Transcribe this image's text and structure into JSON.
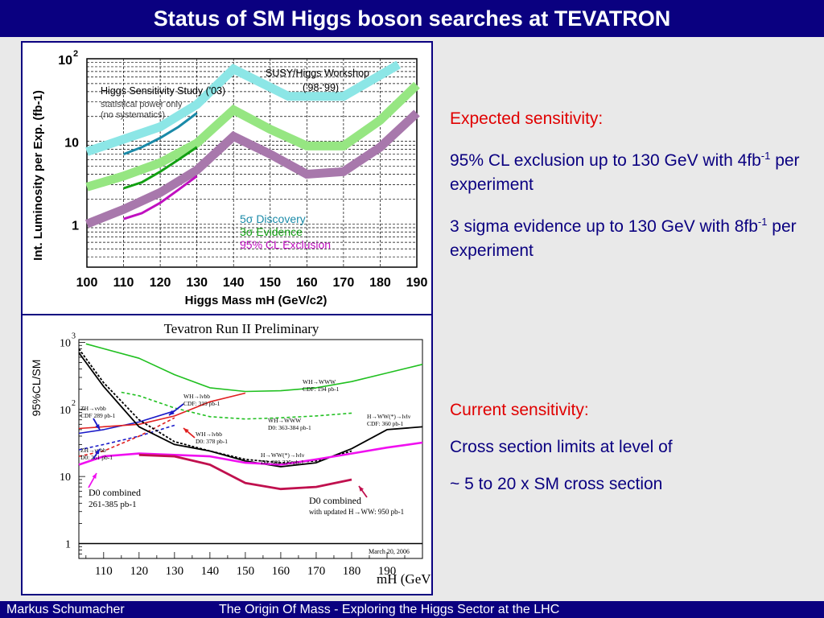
{
  "title": "Status of SM Higgs boson searches at TEVATRON",
  "footer": {
    "author": "Markus  Schumacher",
    "talk": "The Origin Of Mass - Exploring the Higgs Sector at the LHC"
  },
  "right_top": {
    "heading": "Expected sensitivity:",
    "p1_a": "95% CL exclusion up to 130 GeV with 4fb",
    "p1_sup": "-1",
    "p1_b": " per experiment",
    "p2_a": "3 sigma evidence up to 130 GeV with 8fb",
    "p2_sup": "-1",
    "p2_b": " per experiment"
  },
  "right_bottom": {
    "heading": "Current sensitivity:",
    "p1": "Cross section limits at level of",
    "p2": "~ 5 to 20 x SM cross section"
  },
  "colors": {
    "navy": "#0a0080",
    "red": "#e00000",
    "cyan": "#8ce6e6",
    "lgreen": "#96e682",
    "lpurple": "#a878ac",
    "teal": "#1a8aa8",
    "dgreen": "#12a012",
    "magenta": "#c010c0"
  },
  "chart_data": [
    {
      "type": "line",
      "ylabel": "Int. Luminosity per Exp. (fb-1)",
      "xlabel": "Higgs Mass mH (GeV/c2)",
      "log_y": true,
      "xlim": [
        100,
        190
      ],
      "ylim": [
        0.3,
        100
      ],
      "x_ticks": [
        "100",
        "110",
        "120",
        "130",
        "140",
        "150",
        "160",
        "170",
        "180",
        "190"
      ],
      "y_ticks": [
        {
          "v": 1,
          "t": "1"
        },
        {
          "v": 10,
          "t": "10"
        },
        {
          "v": 100,
          "t": "10"
        }
      ],
      "y_tick_sup": "2",
      "annotations": {
        "study": "Higgs Sensitivity Study ('03)",
        "stat1": "statistical power only",
        "stat2": "(no systematics)",
        "workshop1": "SUSY/Higgs Workshop",
        "workshop2": "('98-'99)"
      },
      "legend": [
        {
          "name": "5σ Discovery",
          "color": "#1a8aa8"
        },
        {
          "name": "3σ Evidence",
          "color": "#12a012"
        },
        {
          "name": "95% CL Exclusion",
          "color": "#c010c0"
        }
      ],
      "series": [
        {
          "id": "susy-discovery",
          "color": "#8ce6e6",
          "width": 11,
          "x": [
            100,
            120,
            130,
            140,
            155,
            170,
            185
          ],
          "y": [
            7.5,
            15,
            28,
            75,
            35,
            35,
            85
          ]
        },
        {
          "id": "susy-evidence",
          "color": "#96e682",
          "width": 11,
          "x": [
            100,
            110,
            120,
            130,
            140,
            150,
            160,
            170,
            180,
            190
          ],
          "y": [
            2.8,
            3.8,
            5.5,
            9.5,
            24,
            14,
            8.8,
            8.8,
            18,
            48
          ]
        },
        {
          "id": "susy-exclusion",
          "color": "#a878ac",
          "width": 11,
          "x": [
            100,
            110,
            120,
            130,
            140,
            150,
            160,
            170,
            180,
            190
          ],
          "y": [
            1,
            1.5,
            2.4,
            4.5,
            11.5,
            7,
            4,
            4.3,
            8.5,
            22
          ]
        },
        {
          "id": "study-discovery",
          "color": "#1a8aa8",
          "width": 3,
          "x": [
            110,
            115,
            120,
            125,
            130
          ],
          "y": [
            7,
            8.5,
            11,
            15,
            22
          ]
        },
        {
          "id": "study-evidence",
          "color": "#12a012",
          "width": 3,
          "x": [
            110,
            115,
            120,
            125,
            130
          ],
          "y": [
            2.7,
            3.2,
            4.3,
            6,
            8.5
          ]
        },
        {
          "id": "study-exclusion",
          "color": "#c010c0",
          "width": 3,
          "x": [
            110,
            115,
            120,
            125,
            130
          ],
          "y": [
            1.15,
            1.35,
            1.8,
            2.6,
            3.8
          ]
        }
      ]
    },
    {
      "type": "line",
      "title": "Tevatron Run II Preliminary",
      "ylabel": "95%CL/SM",
      "xlabel": "mH (GeV)",
      "log_y": true,
      "xlim": [
        103,
        200
      ],
      "ylim": [
        0.6,
        1100
      ],
      "x_ticks": [
        "110",
        "120",
        "130",
        "140",
        "150",
        "160",
        "170",
        "180",
        "190"
      ],
      "y_ticks": [
        {
          "v": 1,
          "t": "1"
        },
        {
          "v": 10,
          "t": "10"
        },
        {
          "v": 100,
          "t": "10"
        },
        {
          "v": 1000,
          "t": "10"
        }
      ],
      "y_tick_sups": [
        "",
        "",
        "2",
        "3"
      ],
      "date_label": "March 20, 2006",
      "labels": {
        "zh_cdf": "ZH→ννbb",
        "zh_cdf2": "CDF 289 pb-1",
        "zh_d0": "ZH→ννbb",
        "zh_d02": "D0: 261 pb-1",
        "wh_cdf": "WH→lνbb",
        "wh_cdf2": "CDF: 319 pb-1",
        "wh_d0": "WH→lνbb",
        "wh_d02": "D0: 378 pb-1",
        "www_cdf": "WH→WWW",
        "www_cdf2": "CDF: 194 pb-1",
        "www_d0": "WH→WWW",
        "www_d02": "D0: 363-384 pb-1",
        "hww_d0": "H→WW(*)→lνlν",
        "hww_d02": "D0: 300-325 pb-1",
        "hww_cdf": "H→WW(*)→lνlν",
        "hww_cdf2": "CDF: 360 pb-1",
        "d0comb": "D0 combined",
        "d0comb2": "261-385 pb-1",
        "d0comb_upd": "D0 combined",
        "d0comb_upd2": "with updated H→WW: 950 pb-1"
      },
      "series": [
        {
          "id": "zh-cdf",
          "color": "#1a1ac8",
          "width": 1.6,
          "dash": "",
          "x": [
            103,
            110,
            120,
            130
          ],
          "y": [
            44,
            50,
            65,
            95
          ]
        },
        {
          "id": "zh-d0",
          "color": "#1a1ac8",
          "width": 1.6,
          "dash": "4,3",
          "x": [
            103,
            110,
            120,
            130
          ],
          "y": [
            25,
            30,
            40,
            58
          ]
        },
        {
          "id": "wh-cdf",
          "color": "#e02020",
          "width": 1.6,
          "dash": "",
          "x": [
            103,
            120,
            130,
            140,
            150
          ],
          "y": [
            52,
            60,
            80,
            130,
            175
          ]
        },
        {
          "id": "wh-d0",
          "color": "#e02020",
          "width": 1.6,
          "dash": "4,3",
          "x": [
            103,
            110,
            120,
            130
          ],
          "y": [
            20,
            24,
            40,
            75
          ]
        },
        {
          "id": "www-cdf",
          "color": "#20c020",
          "width": 1.6,
          "dash": "",
          "x": [
            105,
            120,
            130,
            140,
            150,
            160,
            170,
            180,
            190,
            200
          ],
          "y": [
            950,
            580,
            330,
            210,
            185,
            190,
            210,
            260,
            350,
            470
          ]
        },
        {
          "id": "www-d0",
          "color": "#20c020",
          "width": 1.6,
          "dash": "4,3",
          "x": [
            115,
            120,
            130,
            140,
            150,
            160,
            170,
            180
          ],
          "y": [
            180,
            160,
            105,
            78,
            72,
            75,
            80,
            88
          ]
        },
        {
          "id": "hww-d0",
          "color": "#000000",
          "width": 1.8,
          "dash": "3,2",
          "x": [
            103,
            110,
            120,
            130,
            140,
            150,
            160,
            170,
            180
          ],
          "y": [
            800,
            250,
            70,
            33,
            24,
            18,
            16,
            17,
            24
          ]
        },
        {
          "id": "hww-cdf",
          "color": "#000000",
          "width": 1.8,
          "dash": "",
          "x": [
            103,
            110,
            115,
            120,
            130,
            140,
            150,
            160,
            170,
            180,
            190,
            200
          ],
          "y": [
            700,
            220,
            110,
            55,
            30,
            24,
            17,
            14,
            16,
            26,
            50,
            55
          ]
        },
        {
          "id": "d0-combined",
          "color": "#f010f0",
          "width": 2.6,
          "dash": "",
          "x": [
            103,
            110,
            120,
            130,
            140,
            150,
            160,
            170,
            180,
            190,
            200
          ],
          "y": [
            15,
            20,
            22,
            21,
            20,
            16,
            15,
            18,
            22,
            27,
            32
          ]
        },
        {
          "id": "d0-combined-updated",
          "color": "#c0104e",
          "width": 2.8,
          "dash": "",
          "x": [
            120,
            130,
            140,
            150,
            160,
            170,
            180
          ],
          "y": [
            21,
            20,
            15,
            8,
            6.5,
            7,
            9
          ]
        }
      ]
    }
  ]
}
